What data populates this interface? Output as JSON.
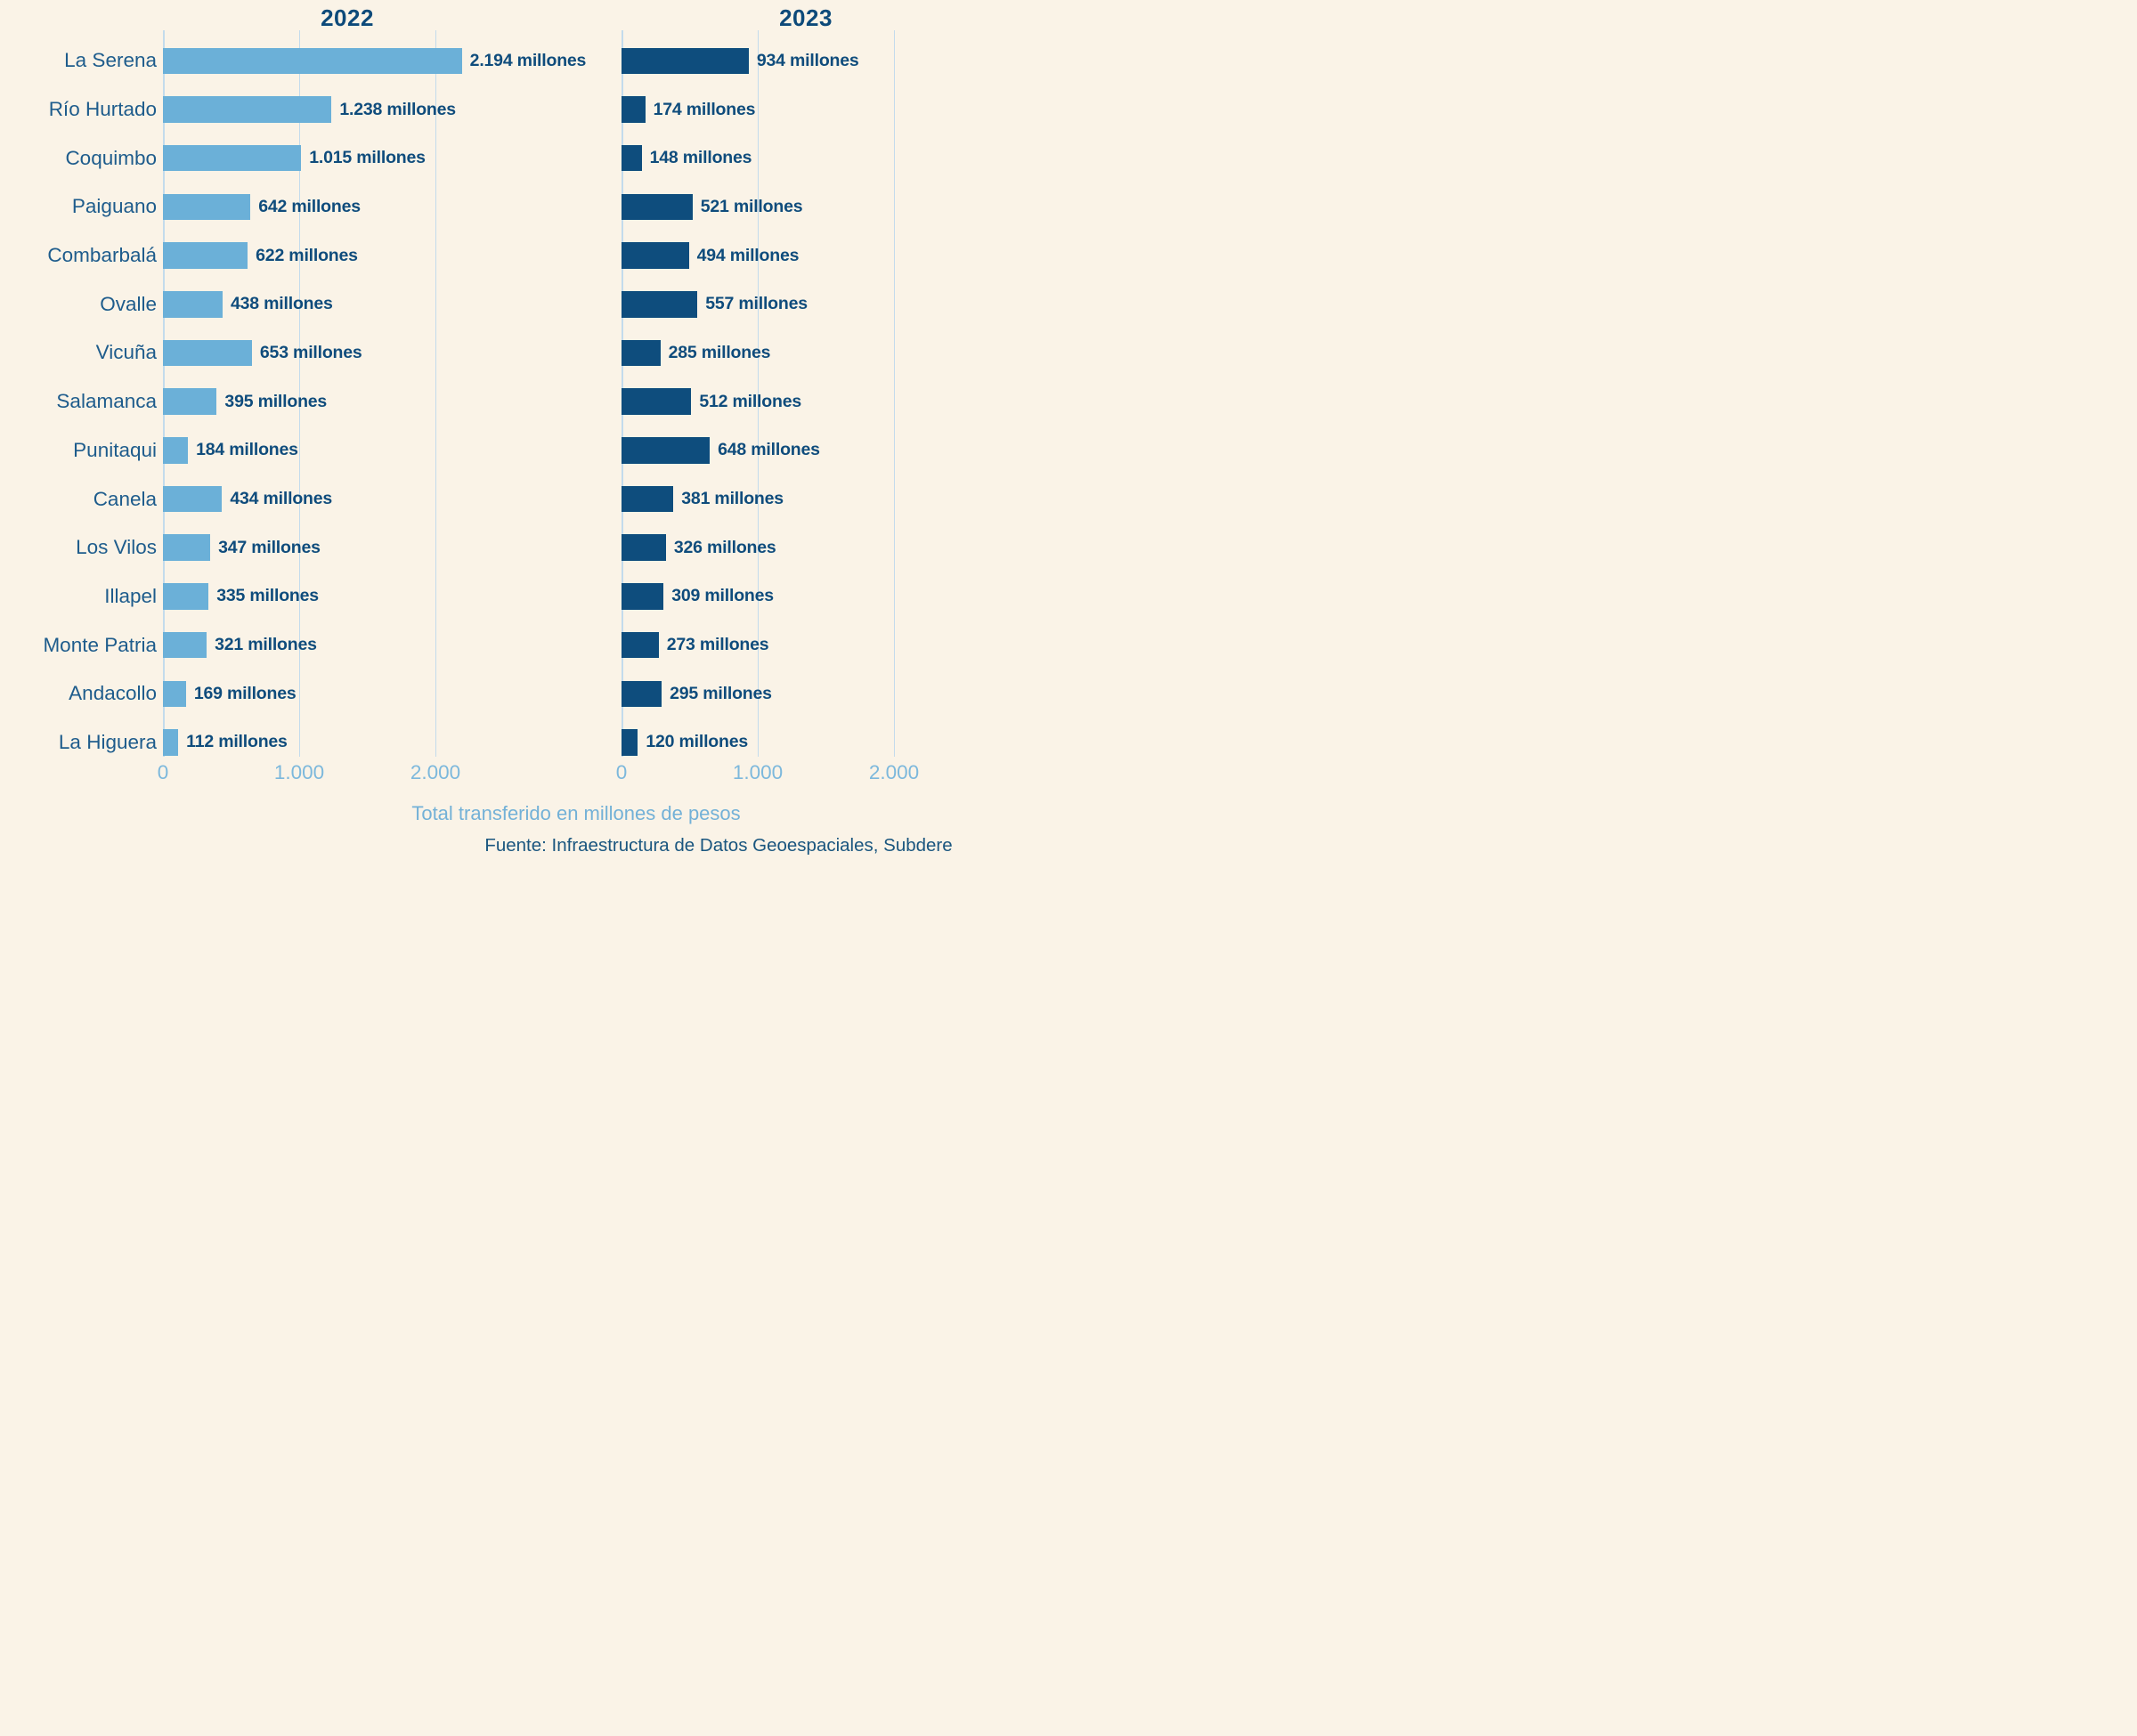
{
  "chart_data": {
    "type": "bar",
    "orientation": "horizontal",
    "title_left": "2022",
    "title_right": "2023",
    "categories": [
      "La Serena",
      "Río Hurtado",
      "Coquimbo",
      "Paiguano",
      "Combarbalá",
      "Ovalle",
      "Vicuña",
      "Salamanca",
      "Punitaqui",
      "Canela",
      "Los Vilos",
      "Illapel",
      "Monte Patria",
      "Andacollo",
      "La Higuera"
    ],
    "series": [
      {
        "name": "2022",
        "values": [
          2194,
          1238,
          1015,
          642,
          622,
          438,
          653,
          395,
          184,
          434,
          347,
          335,
          321,
          169,
          112
        ],
        "labels": [
          "2.194 millones",
          "1.238 millones",
          "1.015 millones",
          "642 millones",
          "622 millones",
          "438 millones",
          "653 millones",
          "395 millones",
          "184 millones",
          "434 millones",
          "347 millones",
          "335 millones",
          "321 millones",
          "169 millones",
          "112 millones"
        ],
        "color": "#6BB0D8"
      },
      {
        "name": "2023",
        "values": [
          934,
          174,
          148,
          521,
          494,
          557,
          285,
          512,
          648,
          381,
          326,
          309,
          273,
          295,
          120
        ],
        "labels": [
          "934 millones",
          "174 millones",
          "148 millones",
          "521 millones",
          "494 millones",
          "557 millones",
          "285 millones",
          "512 millones",
          "648 millones",
          "381 millones",
          "326 millones",
          "309 millones",
          "273 millones",
          "295 millones",
          "120 millones"
        ],
        "color": "#0E4D7D"
      }
    ],
    "x_ticks": [
      {
        "value": 0,
        "label": "0"
      },
      {
        "value": 1000,
        "label": "1.000"
      },
      {
        "value": 2000,
        "label": "2.000"
      }
    ],
    "xlim": [
      0,
      3268
    ],
    "grid": true,
    "legend": false,
    "xlabel": "Total transferido en millones de pesos",
    "source": "Fuente: Infraestructura de Datos Geoespaciales, Subdere"
  },
  "colors": {
    "background": "#FAF3E7",
    "bar_2022": "#6BB0D8",
    "bar_2023": "#0E4D7D",
    "grid": "#C3DBEC",
    "tick_text": "#7CB8DC",
    "category_text": "#1E5C8C",
    "value_text": "#0F4C7C",
    "title_text": "#0D4A7A",
    "axis_label_text": "#73B1D7",
    "source_text": "#1A567F"
  }
}
